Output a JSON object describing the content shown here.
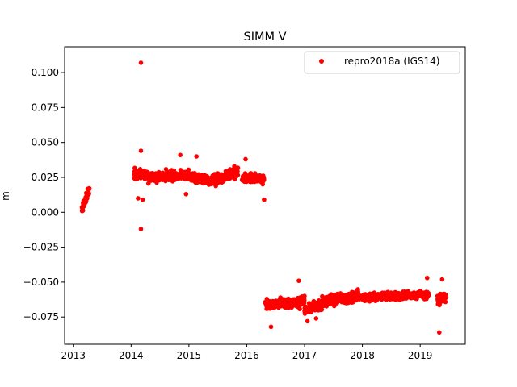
{
  "chart_data": {
    "type": "scatter",
    "title": "SIMM V",
    "xlabel": "",
    "ylabel": "m",
    "xlim": [
      2012.85,
      2019.78
    ],
    "ylim": [
      -0.0945,
      0.1185
    ],
    "xticks": [
      2013,
      2014,
      2015,
      2016,
      2017,
      2018,
      2019
    ],
    "yticks": [
      -0.075,
      -0.05,
      -0.025,
      0.0,
      0.025,
      0.05,
      0.075,
      0.1
    ],
    "ytick_labels": [
      "−0.075",
      "−0.050",
      "−0.025",
      "0.000",
      "0.025",
      "0.050",
      "0.075",
      "0.100"
    ],
    "grid": false,
    "legend_position": "top-right",
    "series": [
      {
        "name": "repro2018a (IGS14)",
        "color": "#ff0000",
        "segments": [
          {
            "x_start": 2013.15,
            "x_end": 2013.28,
            "y_start": 0.002,
            "y_end": 0.016,
            "spread": 0.004
          },
          {
            "x_start": 2014.05,
            "x_end": 2014.3,
            "y_start": 0.028,
            "y_end": 0.027,
            "spread": 0.005
          },
          {
            "x_start": 2014.3,
            "x_end": 2015.0,
            "y_start": 0.025,
            "y_end": 0.027,
            "spread": 0.005
          },
          {
            "x_start": 2015.0,
            "x_end": 2015.5,
            "y_start": 0.026,
            "y_end": 0.022,
            "spread": 0.005
          },
          {
            "x_start": 2015.5,
            "x_end": 2015.85,
            "y_start": 0.024,
            "y_end": 0.03,
            "spread": 0.005
          },
          {
            "x_start": 2015.92,
            "x_end": 2016.3,
            "y_start": 0.024,
            "y_end": 0.024,
            "spread": 0.004
          },
          {
            "x_start": 2016.32,
            "x_end": 2017.0,
            "y_start": -0.066,
            "y_end": -0.064,
            "spread": 0.005
          },
          {
            "x_start": 2017.0,
            "x_end": 2017.3,
            "y_start": -0.07,
            "y_end": -0.066,
            "spread": 0.005
          },
          {
            "x_start": 2017.3,
            "x_end": 2017.95,
            "y_start": -0.064,
            "y_end": -0.06,
            "spread": 0.005
          },
          {
            "x_start": 2018.0,
            "x_end": 2019.15,
            "y_start": -0.061,
            "y_end": -0.059,
            "spread": 0.004
          },
          {
            "x_start": 2019.3,
            "x_end": 2019.45,
            "y_start": -0.062,
            "y_end": -0.061,
            "spread": 0.005
          }
        ],
        "outliers": [
          {
            "x": 2014.17,
            "y": 0.107
          },
          {
            "x": 2014.17,
            "y": -0.012
          },
          {
            "x": 2014.17,
            "y": 0.044
          },
          {
            "x": 2014.12,
            "y": 0.01
          },
          {
            "x": 2014.2,
            "y": 0.009
          },
          {
            "x": 2014.85,
            "y": 0.041
          },
          {
            "x": 2014.95,
            "y": 0.013
          },
          {
            "x": 2015.13,
            "y": 0.04
          },
          {
            "x": 2015.98,
            "y": 0.038
          },
          {
            "x": 2016.3,
            "y": 0.009
          },
          {
            "x": 2016.42,
            "y": -0.082
          },
          {
            "x": 2016.9,
            "y": -0.049
          },
          {
            "x": 2017.05,
            "y": -0.078
          },
          {
            "x": 2017.2,
            "y": -0.076
          },
          {
            "x": 2019.12,
            "y": -0.047
          },
          {
            "x": 2019.38,
            "y": -0.048
          },
          {
            "x": 2019.33,
            "y": -0.086
          }
        ]
      }
    ]
  }
}
